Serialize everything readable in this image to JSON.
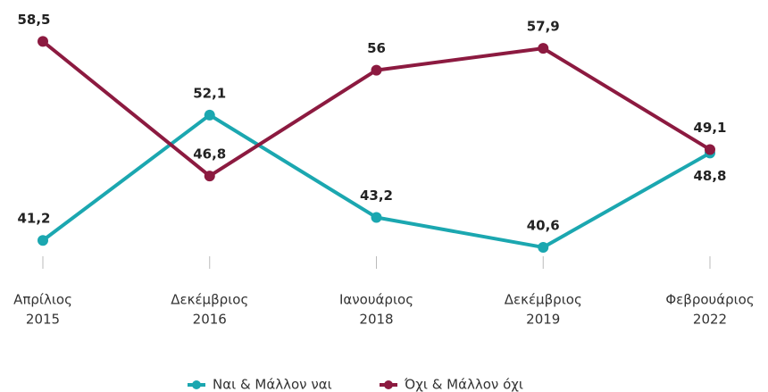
{
  "chart_data": {
    "type": "line",
    "categories": [
      [
        "Απρίλιος",
        "2015"
      ],
      [
        "Δεκέμβριος",
        "2016"
      ],
      [
        "Ιανουάριος",
        "2018"
      ],
      [
        "Δεκέμβριος",
        "2019"
      ],
      [
        "Φεβρουάριος",
        "2022"
      ]
    ],
    "series": [
      {
        "name": "Ναι & Μάλλον ναι",
        "color": "#1ba7b0",
        "values": [
          41.2,
          52.1,
          43.2,
          40.6,
          48.8
        ],
        "value_labels": [
          "41,2",
          "52,1",
          "43,2",
          "40,6",
          "48,8"
        ]
      },
      {
        "name": "Όχι & Μάλλον όχι",
        "color": "#8c1a40",
        "values": [
          58.5,
          46.8,
          56,
          57.9,
          49.1
        ],
        "value_labels": [
          "58,5",
          "46,8",
          "56",
          "57,9",
          "49,1"
        ]
      }
    ],
    "ylim": [
      39.2,
      62.1
    ],
    "legend": "bottom"
  }
}
